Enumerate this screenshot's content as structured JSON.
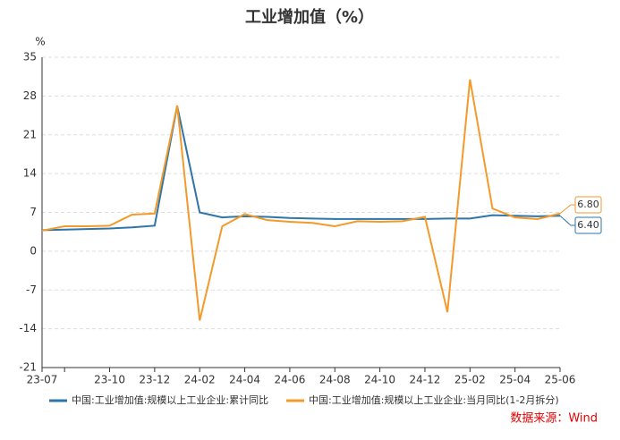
{
  "chart_data": {
    "type": "line",
    "title": "工业增加值（%）",
    "y_unit": "%",
    "source": "数据来源：Wind",
    "categories": [
      "23-07",
      null,
      null,
      "23-10",
      null,
      "23-12",
      null,
      "24-02",
      null,
      "24-04",
      null,
      "24-06",
      null,
      "24-08",
      null,
      "24-10",
      null,
      "24-12",
      null,
      "25-02",
      null,
      "25-04",
      null,
      "25-06"
    ],
    "series": [
      {
        "name": "中国:工业增加值:规模以上工业企业:累计同比",
        "color": "#2e75a8",
        "values": [
          3.8,
          3.9,
          4.0,
          4.1,
          4.3,
          4.6,
          26.2,
          7.0,
          6.1,
          6.3,
          6.2,
          6.0,
          5.9,
          5.8,
          5.8,
          5.8,
          5.8,
          5.8,
          5.9,
          5.9,
          6.5,
          6.4,
          6.3,
          6.4
        ],
        "value_labels": [
          null,
          null,
          null,
          null,
          null,
          null,
          null,
          null,
          null,
          null,
          null,
          null,
          null,
          null,
          null,
          null,
          null,
          null,
          null,
          null,
          null,
          null,
          null,
          "6.40"
        ]
      },
      {
        "name": "中国:工业增加值:规模以上工业企业:当月同比(1-2月拆分)",
        "color": "#f39a2b",
        "values": [
          3.7,
          4.5,
          4.5,
          4.6,
          6.6,
          6.8,
          26.3,
          -12.5,
          4.5,
          6.7,
          5.6,
          5.3,
          5.1,
          4.5,
          5.4,
          5.3,
          5.4,
          6.2,
          -11.0,
          31.0,
          7.7,
          6.1,
          5.8,
          6.8
        ],
        "value_labels": [
          null,
          null,
          null,
          null,
          null,
          null,
          null,
          null,
          null,
          null,
          null,
          null,
          null,
          null,
          null,
          null,
          null,
          null,
          null,
          null,
          null,
          null,
          null,
          "6.80"
        ]
      }
    ],
    "ylim": [
      -21,
      35
    ],
    "yticks": [
      -21,
      -14,
      -7,
      0,
      7,
      14,
      21,
      28,
      35
    ],
    "grid": true
  }
}
